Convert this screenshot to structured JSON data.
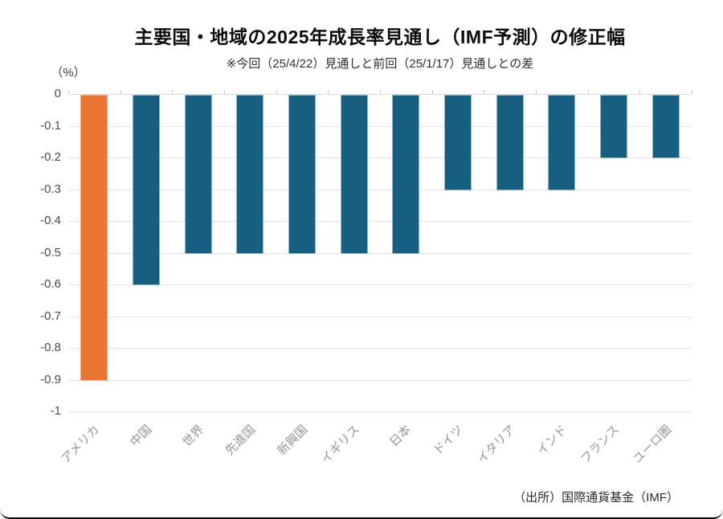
{
  "header": {
    "title": "主要国・地域の2025年成長率見通し（IMF予測）の修正幅",
    "subtitle": "※今回（25/4/22）見通しと前回（25/1/17）見通しとの差"
  },
  "chart_data": {
    "type": "bar",
    "title": "主要国・地域の2025年成長率見通し（IMF予測）の修正幅",
    "subtitle": "※今回（25/4/22）見通しと前回（25/1/17）見通しとの差",
    "unit_label": "（%）",
    "categories": [
      "アメリカ",
      "中国",
      "世界",
      "先進国",
      "新興国",
      "イギリス",
      "日本",
      "ドイツ",
      "イタリア",
      "インド",
      "フランス",
      "ユーロ圏"
    ],
    "values": [
      -0.9,
      -0.6,
      -0.5,
      -0.5,
      -0.5,
      -0.5,
      -0.5,
      -0.3,
      -0.3,
      -0.3,
      -0.2,
      -0.2
    ],
    "highlight_index": 0,
    "xlabel": "",
    "ylabel": "（%）",
    "ylim": [
      -1,
      0
    ],
    "ytick_labels": [
      "0",
      "-0.1",
      "-0.2",
      "-0.3",
      "-0.4",
      "-0.5",
      "-0.6",
      "-0.7",
      "-0.8",
      "-0.9",
      "-1"
    ],
    "grid": true,
    "legend_position": "none",
    "source": "（出所）国際通貨基金（IMF）",
    "colors": {
      "bar_default": "#175F80",
      "bar_default_border": "#8FB4C6",
      "bar_highlight": "#E97434",
      "bar_highlight_border": "#F2AC7E",
      "gridline": "#E4E4E4",
      "zero_line": "#D9D9D9",
      "tick_mark": "#C8C8C8"
    }
  }
}
